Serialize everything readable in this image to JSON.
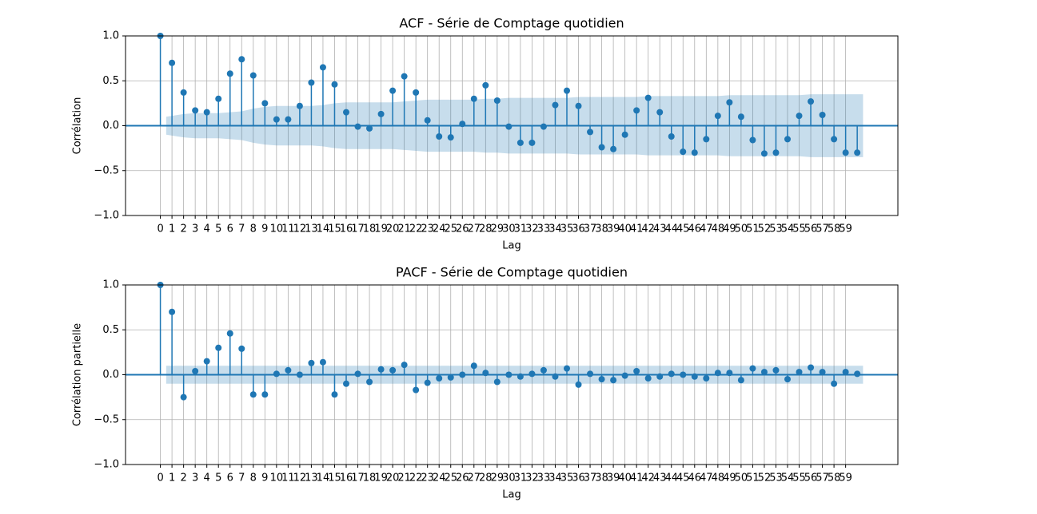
{
  "chart_data": [
    {
      "type": "stem",
      "title": "ACF - Série de Comptage quotidien",
      "xlabel": "Lag",
      "ylabel": "Corrélation",
      "color": "#1f77b4",
      "grid": true,
      "x": [
        0,
        1,
        2,
        3,
        4,
        5,
        6,
        7,
        8,
        9,
        10,
        11,
        12,
        13,
        14,
        15,
        16,
        17,
        18,
        19,
        20,
        21,
        22,
        23,
        24,
        25,
        26,
        27,
        28,
        29,
        30,
        31,
        32,
        33,
        34,
        35,
        36,
        37,
        38,
        39,
        40,
        41,
        42,
        43,
        44,
        45,
        46,
        47,
        48,
        49,
        50,
        51,
        52,
        53,
        54,
        55,
        56,
        57,
        58,
        59,
        60
      ],
      "values": [
        1.0,
        0.7,
        0.37,
        0.17,
        0.15,
        0.3,
        0.58,
        0.74,
        0.56,
        0.25,
        0.07,
        0.07,
        0.22,
        0.48,
        0.65,
        0.46,
        0.15,
        -0.01,
        -0.03,
        0.13,
        0.39,
        0.55,
        0.37,
        0.06,
        -0.12,
        -0.13,
        0.02,
        0.3,
        0.45,
        0.28,
        -0.01,
        -0.19,
        -0.19,
        -0.01,
        0.23,
        0.39,
        0.22,
        -0.07,
        -0.24,
        -0.26,
        -0.1,
        0.17,
        0.31,
        0.15,
        -0.12,
        -0.29,
        -0.3,
        -0.15,
        0.11,
        0.26,
        0.1,
        -0.16,
        -0.31,
        -0.3,
        -0.15,
        0.11,
        0.27,
        0.12,
        -0.15,
        -0.3,
        -0.3
      ],
      "confidence": [
        null,
        0.1,
        0.13,
        0.14,
        0.14,
        0.14,
        0.15,
        0.16,
        0.19,
        0.21,
        0.22,
        0.22,
        0.22,
        0.22,
        0.23,
        0.25,
        0.26,
        0.26,
        0.26,
        0.26,
        0.26,
        0.27,
        0.28,
        0.29,
        0.29,
        0.29,
        0.29,
        0.29,
        0.3,
        0.3,
        0.31,
        0.31,
        0.31,
        0.31,
        0.31,
        0.31,
        0.32,
        0.32,
        0.32,
        0.32,
        0.32,
        0.32,
        0.33,
        0.33,
        0.33,
        0.33,
        0.33,
        0.33,
        0.33,
        0.34,
        0.34,
        0.34,
        0.34,
        0.34,
        0.34,
        0.34,
        0.35,
        0.35,
        0.35,
        0.35,
        0.35
      ],
      "xlim": [
        -3.0,
        63.5
      ],
      "ylim": [
        -1.0,
        1.0
      ],
      "xticks": [
        0,
        1,
        2,
        3,
        4,
        5,
        6,
        7,
        8,
        9,
        10,
        11,
        12,
        13,
        14,
        15,
        16,
        17,
        18,
        19,
        20,
        21,
        22,
        23,
        24,
        25,
        26,
        27,
        28,
        29,
        30,
        31,
        32,
        33,
        34,
        35,
        36,
        37,
        38,
        39,
        40,
        41,
        42,
        43,
        44,
        45,
        46,
        47,
        48,
        49,
        50,
        51,
        52,
        53,
        54,
        55,
        56,
        57,
        58,
        59
      ],
      "yticks": [
        {
          "value": -1.0,
          "label": "−1.0"
        },
        {
          "value": -0.5,
          "label": "−0.5"
        },
        {
          "value": 0.0,
          "label": "0.0"
        },
        {
          "value": 0.5,
          "label": "0.5"
        },
        {
          "value": 1.0,
          "label": "1.0"
        }
      ]
    },
    {
      "type": "stem",
      "title": "PACF - Série de Comptage quotidien",
      "xlabel": "Lag",
      "ylabel": "Corrélation partielle",
      "color": "#1f77b4",
      "grid": true,
      "x": [
        0,
        1,
        2,
        3,
        4,
        5,
        6,
        7,
        8,
        9,
        10,
        11,
        12,
        13,
        14,
        15,
        16,
        17,
        18,
        19,
        20,
        21,
        22,
        23,
        24,
        25,
        26,
        27,
        28,
        29,
        30,
        31,
        32,
        33,
        34,
        35,
        36,
        37,
        38,
        39,
        40,
        41,
        42,
        43,
        44,
        45,
        46,
        47,
        48,
        49,
        50,
        51,
        52,
        53,
        54,
        55,
        56,
        57,
        58,
        59,
        60
      ],
      "values": [
        1.0,
        0.7,
        -0.25,
        0.04,
        0.15,
        0.3,
        0.46,
        0.29,
        -0.22,
        -0.22,
        0.01,
        0.05,
        0.0,
        0.13,
        0.14,
        -0.22,
        -0.1,
        0.01,
        -0.08,
        0.06,
        0.05,
        0.11,
        -0.17,
        -0.09,
        -0.04,
        -0.03,
        0.0,
        0.1,
        0.02,
        -0.08,
        0.0,
        -0.02,
        0.01,
        0.05,
        -0.02,
        0.07,
        -0.11,
        0.01,
        -0.05,
        -0.06,
        -0.01,
        0.04,
        -0.04,
        -0.02,
        0.01,
        0.0,
        -0.02,
        -0.04,
        0.02,
        0.02,
        -0.06,
        0.07,
        0.03,
        0.05,
        -0.05,
        0.03,
        0.08,
        0.03,
        -0.1,
        0.03,
        0.01
      ],
      "confidence": [
        null,
        0.1,
        0.1,
        0.1,
        0.1,
        0.1,
        0.1,
        0.1,
        0.1,
        0.1,
        0.1,
        0.1,
        0.1,
        0.1,
        0.1,
        0.1,
        0.1,
        0.1,
        0.1,
        0.1,
        0.1,
        0.1,
        0.1,
        0.1,
        0.1,
        0.1,
        0.1,
        0.1,
        0.1,
        0.1,
        0.1,
        0.1,
        0.1,
        0.1,
        0.1,
        0.1,
        0.1,
        0.1,
        0.1,
        0.1,
        0.1,
        0.1,
        0.1,
        0.1,
        0.1,
        0.1,
        0.1,
        0.1,
        0.1,
        0.1,
        0.1,
        0.1,
        0.1,
        0.1,
        0.1,
        0.1,
        0.1,
        0.1,
        0.1,
        0.1,
        0.1
      ],
      "xlim": [
        -3.0,
        63.5
      ],
      "ylim": [
        -1.0,
        1.0
      ],
      "xticks": [
        0,
        1,
        2,
        3,
        4,
        5,
        6,
        7,
        8,
        9,
        10,
        11,
        12,
        13,
        14,
        15,
        16,
        17,
        18,
        19,
        20,
        21,
        22,
        23,
        24,
        25,
        26,
        27,
        28,
        29,
        30,
        31,
        32,
        33,
        34,
        35,
        36,
        37,
        38,
        39,
        40,
        41,
        42,
        43,
        44,
        45,
        46,
        47,
        48,
        49,
        50,
        51,
        52,
        53,
        54,
        55,
        56,
        57,
        58,
        59
      ],
      "yticks": [
        {
          "value": -1.0,
          "label": "−1.0"
        },
        {
          "value": -0.5,
          "label": "−0.5"
        },
        {
          "value": 0.0,
          "label": "0.0"
        },
        {
          "value": 0.5,
          "label": "0.5"
        },
        {
          "value": 1.0,
          "label": "1.0"
        }
      ]
    }
  ]
}
